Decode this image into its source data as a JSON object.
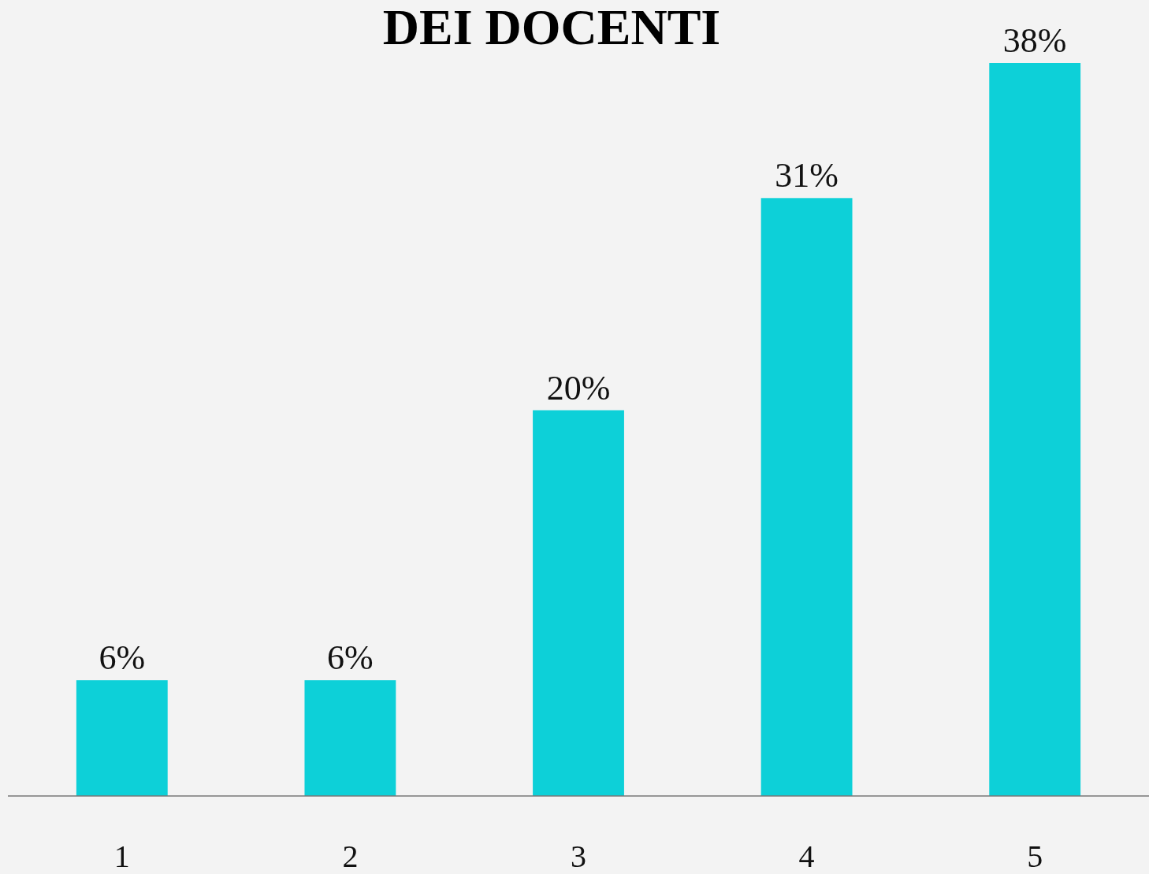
{
  "chart_data": {
    "type": "bar",
    "title": "DEI DOCENTI",
    "categories": [
      "1",
      "2",
      "3",
      "4",
      "5"
    ],
    "values": [
      6,
      6,
      20,
      31,
      38
    ],
    "value_labels": [
      "6%",
      "6%",
      "20%",
      "31%",
      "38%"
    ],
    "color": "#0dd0d8"
  }
}
